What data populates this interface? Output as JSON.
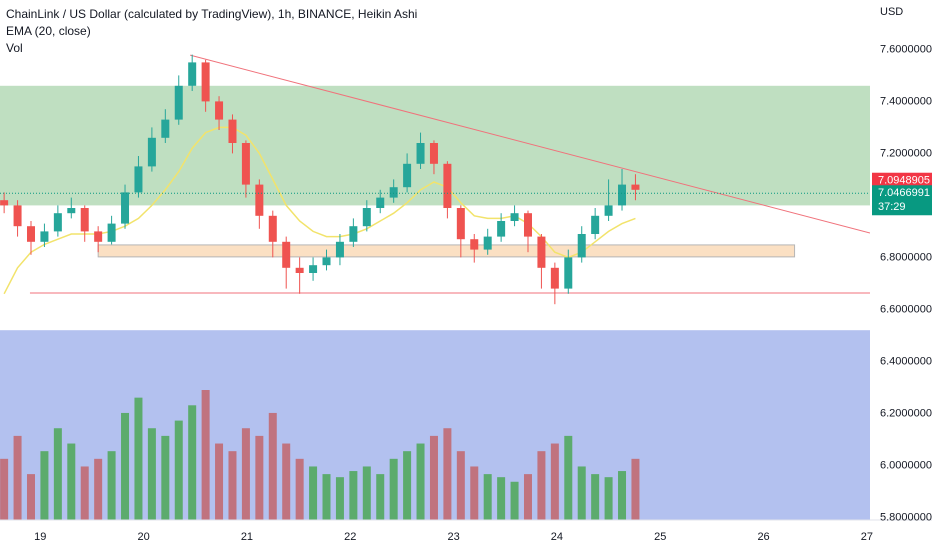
{
  "header": {
    "title": "ChainLink / US Dollar (calculated by TradingView), 1h, BINANCE, Heikin Ashi",
    "currency": "USD"
  },
  "chart_data": {
    "type": "candlestick",
    "x": [
      18.65,
      18.78,
      18.91,
      19.04,
      19.17,
      19.3,
      19.43,
      19.56,
      19.69,
      19.82,
      19.95,
      20.08,
      20.21,
      20.34,
      20.47,
      20.6,
      20.73,
      20.86,
      20.99,
      21.12,
      21.25,
      21.38,
      21.51,
      21.64,
      21.77,
      21.9,
      22.03,
      22.16,
      22.29,
      22.42,
      22.55,
      22.68,
      22.81,
      22.94,
      23.07,
      23.2,
      23.33,
      23.46,
      23.59,
      23.72,
      23.85,
      23.98,
      24.11,
      24.24,
      24.37,
      24.5,
      24.63,
      24.76
    ],
    "open": [
      7.02,
      7.0,
      6.92,
      6.86,
      6.9,
      6.97,
      6.99,
      6.9,
      6.86,
      6.93,
      7.05,
      7.15,
      7.26,
      7.33,
      7.46,
      7.55,
      7.4,
      7.33,
      7.24,
      7.08,
      6.96,
      6.86,
      6.76,
      6.74,
      6.77,
      6.8,
      6.86,
      6.92,
      6.99,
      7.03,
      7.07,
      7.16,
      7.24,
      7.16,
      6.99,
      6.87,
      6.83,
      6.88,
      6.94,
      6.97,
      6.88,
      6.76,
      6.68,
      6.8,
      6.89,
      6.96,
      7.0,
      7.08
    ],
    "high": [
      7.05,
      7.02,
      6.94,
      6.93,
      7.0,
      7.03,
      7.0,
      6.92,
      6.96,
      7.08,
      7.19,
      7.3,
      7.37,
      7.5,
      7.58,
      7.56,
      7.42,
      7.35,
      7.25,
      7.1,
      6.98,
      6.88,
      6.8,
      6.8,
      6.83,
      6.89,
      6.95,
      7.02,
      7.06,
      7.1,
      7.2,
      7.28,
      7.25,
      7.17,
      7.0,
      6.89,
      6.91,
      6.97,
      7.0,
      6.98,
      6.89,
      6.78,
      6.83,
      6.92,
      6.99,
      7.1,
      7.14,
      7.12
    ],
    "low": [
      6.97,
      6.88,
      6.81,
      6.84,
      6.88,
      6.95,
      6.86,
      6.82,
      6.85,
      6.91,
      7.03,
      7.13,
      7.24,
      7.31,
      7.44,
      7.36,
      7.29,
      7.2,
      7.03,
      6.91,
      6.8,
      6.68,
      6.66,
      6.71,
      6.75,
      6.77,
      6.84,
      6.9,
      6.97,
      7.01,
      7.05,
      7.14,
      7.12,
      6.95,
      6.8,
      6.78,
      6.81,
      6.86,
      6.92,
      6.82,
      6.68,
      6.62,
      6.66,
      6.78,
      6.87,
      6.94,
      6.98,
      7.02
    ],
    "close": [
      7.0,
      6.92,
      6.86,
      6.9,
      6.97,
      6.99,
      6.9,
      6.86,
      6.93,
      7.05,
      7.15,
      7.26,
      7.33,
      7.46,
      7.55,
      7.4,
      7.33,
      7.24,
      7.08,
      6.96,
      6.86,
      6.76,
      6.74,
      6.77,
      6.8,
      6.86,
      6.92,
      6.99,
      7.03,
      7.07,
      7.16,
      7.24,
      7.16,
      6.99,
      6.87,
      6.83,
      6.88,
      6.94,
      6.97,
      6.88,
      6.76,
      6.68,
      6.8,
      6.89,
      6.96,
      7.0,
      7.08,
      7.06
    ],
    "up_color": "#26a69a",
    "down_color": "#ef5350",
    "volume": {
      "name": "Vol",
      "up_color": "#5cab6d",
      "down_color": "#c0737f",
      "values": [
        40,
        55,
        30,
        45,
        60,
        50,
        35,
        40,
        45,
        70,
        80,
        60,
        55,
        65,
        75,
        85,
        50,
        45,
        60,
        55,
        70,
        50,
        40,
        35,
        30,
        28,
        32,
        35,
        30,
        40,
        45,
        50,
        55,
        60,
        45,
        35,
        30,
        28,
        25,
        30,
        45,
        50,
        55,
        35,
        30,
        28,
        32,
        40
      ]
    },
    "series": [
      {
        "name": "EMA (20, close)",
        "color": "#f2e36b",
        "values": [
          6.66,
          6.76,
          6.82,
          6.85,
          6.87,
          6.89,
          6.89,
          6.89,
          6.9,
          6.92,
          6.95,
          7.0,
          7.06,
          7.13,
          7.22,
          7.28,
          7.3,
          7.3,
          7.27,
          7.2,
          7.1,
          7.0,
          6.94,
          6.9,
          6.88,
          6.88,
          6.89,
          6.91,
          6.94,
          6.97,
          7.01,
          7.06,
          7.09,
          7.07,
          7.01,
          6.96,
          6.95,
          6.95,
          6.96,
          6.93,
          6.88,
          6.82,
          6.8,
          6.82,
          6.86,
          6.9,
          6.93,
          6.95
        ]
      }
    ],
    "zones": [
      {
        "x": [
          18.61,
          27.03
        ],
        "y": [
          5.79,
          6.52
        ],
        "color": "#b3c1ef"
      },
      {
        "x": [
          18.61,
          27.03
        ],
        "y": [
          7.0,
          7.46
        ],
        "color": "#bfdfc1"
      },
      {
        "x": [
          19.56,
          26.3
        ],
        "y": [
          6.802,
          6.848
        ],
        "color": "#fbe0c3"
      }
    ],
    "lines": [
      {
        "x": [
          20.45,
          27.03
        ],
        "y": [
          7.578,
          6.894
        ],
        "color": "#f0727b"
      },
      {
        "x": [
          18.9,
          27.03
        ],
        "y": [
          6.663,
          6.663
        ],
        "color": "#f0727b"
      }
    ],
    "price_labels": [
      {
        "value": 7.0948905,
        "color": "#f23645"
      },
      {
        "value": 7.0466991,
        "color": "#089981",
        "countdown": "37:29"
      }
    ],
    "xlim": [
      18.61,
      27.03
    ],
    "ylim": [
      5.79,
      7.79
    ],
    "xticks": [
      19,
      20,
      21,
      22,
      23,
      24,
      25,
      26,
      27
    ],
    "yticks": [
      {
        "value": 7.6,
        "label": "7.6000000"
      },
      {
        "value": 7.4,
        "label": "7.4000000"
      },
      {
        "value": 7.2,
        "label": "7.2000000"
      },
      {
        "value": 6.8,
        "label": "6.8000000"
      },
      {
        "value": 6.6,
        "label": "6.6000000"
      },
      {
        "value": 6.4,
        "label": "6.4000000"
      },
      {
        "value": 6.2,
        "label": "6.2000000"
      },
      {
        "value": 6.0,
        "label": "6.0000000"
      },
      {
        "value": 5.8,
        "label": "5.8000000"
      }
    ]
  }
}
